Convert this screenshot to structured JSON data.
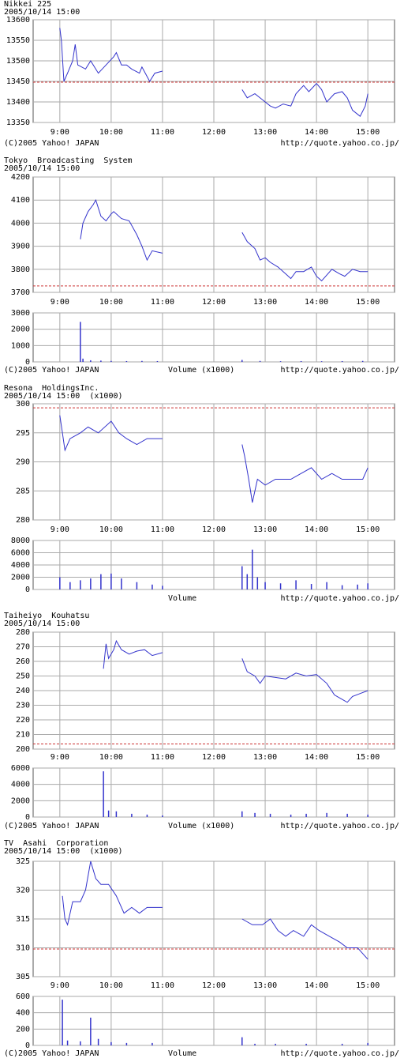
{
  "chart_data": [
    {
      "type": "line",
      "title": "Nikkei 225",
      "subtitle": "2005/10/14 15:00",
      "color": "#3333cc",
      "reference_line": 13448,
      "reference_color": "#cc3333",
      "grid": true,
      "xlim": [
        8.48,
        15.52
      ],
      "xticks": [
        {
          "value": 9,
          "label": "9:00"
        },
        {
          "value": 10,
          "label": "10:00"
        },
        {
          "value": 11,
          "label": "11:00"
        },
        {
          "value": 12,
          "label": "12:00"
        },
        {
          "value": 13,
          "label": "13:00"
        },
        {
          "value": 14,
          "label": "14:00"
        },
        {
          "value": 15,
          "label": "15:00"
        }
      ],
      "ylim": [
        13350,
        13600
      ],
      "yticks": [
        13350,
        13400,
        13450,
        13500,
        13550,
        13600
      ],
      "x": [
        9.0,
        9.03,
        9.08,
        9.15,
        9.25,
        9.3,
        9.35,
        9.5,
        9.6,
        9.75,
        9.9,
        10.05,
        10.1,
        10.2,
        10.3,
        10.4,
        10.55,
        10.6,
        10.75,
        10.85,
        11.0,
        11.5,
        12.55,
        12.65,
        12.8,
        12.95,
        13.1,
        13.2,
        13.35,
        13.5,
        13.6,
        13.75,
        13.85,
        14.0,
        14.1,
        14.2,
        14.35,
        14.5,
        14.6,
        14.7,
        14.85,
        14.95,
        15.0
      ],
      "values": [
        13580,
        13550,
        13450,
        13470,
        13500,
        13540,
        13490,
        13480,
        13500,
        13470,
        13490,
        13510,
        13520,
        13490,
        13490,
        13480,
        13470,
        13485,
        13450,
        13470,
        13475,
        null,
        13430,
        13410,
        13420,
        13405,
        13390,
        13385,
        13395,
        13390,
        13420,
        13440,
        13425,
        13445,
        13430,
        13400,
        13420,
        13425,
        13410,
        13380,
        13365,
        13390,
        13420
      ],
      "copyright": "(C)2005 Yahoo! JAPAN",
      "source": "http://quote.yahoo.co.jp/"
    },
    {
      "type": "line",
      "title": "Tokyo  Broadcasting  System",
      "subtitle": "2005/10/14 15:00",
      "color": "#3333cc",
      "reference_line": 3728,
      "reference_color": "#cc3333",
      "grid": true,
      "xlim": [
        8.48,
        15.52
      ],
      "xticks": [
        {
          "value": 9,
          "label": "9:00"
        },
        {
          "value": 10,
          "label": "10:00"
        },
        {
          "value": 11,
          "label": "11:00"
        },
        {
          "value": 12,
          "label": "12:00"
        },
        {
          "value": 13,
          "label": "13:00"
        },
        {
          "value": 14,
          "label": "14:00"
        },
        {
          "value": 15,
          "label": "15:00"
        }
      ],
      "ylim": [
        3700,
        4200
      ],
      "yticks": [
        3700,
        3800,
        3900,
        4000,
        4100,
        4200
      ],
      "x": [
        9.4,
        9.45,
        9.55,
        9.65,
        9.7,
        9.8,
        9.9,
        10.0,
        10.05,
        10.2,
        10.35,
        10.5,
        10.6,
        10.7,
        10.8,
        11.0,
        11.5,
        12.55,
        12.65,
        12.8,
        12.9,
        13.0,
        13.1,
        13.25,
        13.4,
        13.5,
        13.6,
        13.75,
        13.9,
        14.0,
        14.1,
        14.3,
        14.45,
        14.55,
        14.7,
        14.85,
        15.0
      ],
      "values": [
        3930,
        4000,
        4050,
        4080,
        4100,
        4030,
        4010,
        4040,
        4050,
        4020,
        4010,
        3950,
        3900,
        3840,
        3880,
        3870,
        null,
        3960,
        3920,
        3890,
        3840,
        3850,
        3830,
        3810,
        3780,
        3760,
        3790,
        3790,
        3810,
        3770,
        3750,
        3800,
        3780,
        3770,
        3800,
        3790,
        3790
      ],
      "volume": {
        "ylim": [
          0,
          3000
        ],
        "yticks": [
          0,
          1000,
          2000,
          3000
        ],
        "x": [
          9.4,
          9.45,
          9.6,
          9.8,
          10.0,
          10.3,
          10.6,
          10.9,
          12.55,
          12.9,
          13.3,
          13.7,
          14.1,
          14.5,
          14.9
        ],
        "values": [
          2450,
          200,
          100,
          80,
          60,
          50,
          60,
          50,
          120,
          60,
          40,
          50,
          40,
          50,
          60
        ]
      },
      "copyright": "(C)2005 Yahoo! JAPAN",
      "volume_label": "Volume (x1000)",
      "source": "http://quote.yahoo.co.jp/"
    },
    {
      "type": "line",
      "title": "Resona  HoldingsInc.",
      "subtitle": "2005/10/14 15:00  (x1000)",
      "color": "#3333cc",
      "reference_line": 299.3,
      "reference_color": "#cc3333",
      "grid": true,
      "xlim": [
        8.48,
        15.52
      ],
      "xticks": [
        {
          "value": 9,
          "label": "9:00"
        },
        {
          "value": 10,
          "label": "10:00"
        },
        {
          "value": 11,
          "label": "11:00"
        },
        {
          "value": 12,
          "label": "12:00"
        },
        {
          "value": 13,
          "label": "13:00"
        },
        {
          "value": 14,
          "label": "14:00"
        },
        {
          "value": 15,
          "label": "15:00"
        }
      ],
      "ylim": [
        280,
        300
      ],
      "yticks": [
        280,
        285,
        290,
        295,
        300
      ],
      "x": [
        9.0,
        9.05,
        9.1,
        9.2,
        9.4,
        9.55,
        9.75,
        10.0,
        10.15,
        10.3,
        10.5,
        10.7,
        11.0,
        11.5,
        12.55,
        12.6,
        12.68,
        12.75,
        12.85,
        13.0,
        13.2,
        13.5,
        13.7,
        13.9,
        14.1,
        14.3,
        14.5,
        14.7,
        14.9,
        15.0
      ],
      "values": [
        298,
        295,
        292,
        294,
        295,
        296,
        295,
        297,
        295,
        294,
        293,
        294,
        294,
        null,
        293,
        291,
        287,
        283,
        287,
        286,
        287,
        287,
        288,
        289,
        287,
        288,
        287,
        287,
        287,
        289
      ],
      "volume": {
        "ylim": [
          0,
          8000
        ],
        "yticks": [
          0,
          2000,
          4000,
          6000,
          8000
        ],
        "x": [
          9.0,
          9.2,
          9.4,
          9.6,
          9.8,
          10.0,
          10.2,
          10.5,
          10.8,
          11.0,
          12.55,
          12.65,
          12.75,
          12.85,
          13.0,
          13.3,
          13.6,
          13.9,
          14.2,
          14.5,
          14.8,
          15.0
        ],
        "values": [
          2000,
          1200,
          1500,
          1800,
          2500,
          2600,
          1800,
          1200,
          800,
          600,
          3800,
          2500,
          6500,
          2000,
          1200,
          1000,
          1500,
          900,
          1200,
          700,
          800,
          1000
        ]
      },
      "volume_label": "Volume",
      "source": "http://quote.yahoo.co.jp/"
    },
    {
      "type": "line",
      "title": "Taiheiyo  Kouhatsu",
      "subtitle": "2005/10/14 15:00",
      "color": "#3333cc",
      "reference_line": 203.5,
      "reference_color": "#cc3333",
      "grid": true,
      "xlim": [
        8.48,
        15.52
      ],
      "xticks": [
        {
          "value": 9,
          "label": "9:00"
        },
        {
          "value": 10,
          "label": "10:00"
        },
        {
          "value": 11,
          "label": "11:00"
        },
        {
          "value": 12,
          "label": "12:00"
        },
        {
          "value": 13,
          "label": "13:00"
        },
        {
          "value": 14,
          "label": "14:00"
        },
        {
          "value": 15,
          "label": "15:00"
        }
      ],
      "ylim": [
        200,
        280
      ],
      "yticks": [
        200,
        210,
        220,
        230,
        240,
        250,
        260,
        270,
        280
      ],
      "x": [
        9.85,
        9.9,
        9.95,
        10.05,
        10.1,
        10.2,
        10.35,
        10.5,
        10.65,
        10.8,
        11.0,
        11.5,
        12.55,
        12.65,
        12.8,
        12.9,
        13.0,
        13.2,
        13.4,
        13.6,
        13.8,
        14.0,
        14.2,
        14.35,
        14.5,
        14.6,
        14.7,
        14.85,
        15.0
      ],
      "values": [
        255,
        272,
        262,
        268,
        274,
        268,
        265,
        267,
        268,
        264,
        266,
        null,
        262,
        253,
        250,
        245,
        250,
        249,
        248,
        252,
        250,
        251,
        245,
        237,
        234,
        232,
        236,
        238,
        240
      ],
      "volume": {
        "ylim": [
          0,
          6000
        ],
        "yticks": [
          0,
          2000,
          4000,
          6000
        ],
        "x": [
          9.85,
          9.95,
          10.1,
          10.4,
          10.7,
          11.0,
          12.55,
          12.8,
          13.1,
          13.5,
          13.8,
          14.2,
          14.6,
          15.0
        ],
        "values": [
          5600,
          800,
          700,
          400,
          300,
          200,
          700,
          500,
          400,
          300,
          400,
          500,
          400,
          300
        ]
      },
      "copyright": "(C)2005 Yahoo! JAPAN",
      "volume_label": "Volume (x1000)",
      "source": "http://quote.yahoo.co.jp/"
    },
    {
      "type": "line",
      "title": "TV  Asahi  Corporation",
      "subtitle": "2005/10/14 15:00  (x1000)",
      "color": "#3333cc",
      "reference_line": 309.8,
      "reference_color": "#cc3333",
      "grid": true,
      "xlim": [
        8.48,
        15.52
      ],
      "xticks": [
        {
          "value": 9,
          "label": "9:00"
        },
        {
          "value": 10,
          "label": "10:00"
        },
        {
          "value": 11,
          "label": "11:00"
        },
        {
          "value": 12,
          "label": "12:00"
        },
        {
          "value": 13,
          "label": "13:00"
        },
        {
          "value": 14,
          "label": "14:00"
        },
        {
          "value": 15,
          "label": "15:00"
        }
      ],
      "ylim": [
        305,
        325
      ],
      "yticks": [
        305,
        310,
        315,
        320,
        325
      ],
      "x": [
        9.05,
        9.1,
        9.15,
        9.25,
        9.4,
        9.5,
        9.6,
        9.7,
        9.8,
        9.95,
        10.1,
        10.25,
        10.4,
        10.55,
        10.7,
        11.0,
        11.5,
        12.55,
        12.75,
        12.95,
        13.1,
        13.25,
        13.4,
        13.55,
        13.75,
        13.9,
        14.05,
        14.25,
        14.45,
        14.6,
        14.8,
        14.9,
        15.0
      ],
      "values": [
        319,
        315,
        314,
        318,
        318,
        320,
        325,
        322,
        321,
        321,
        319,
        316,
        317,
        316,
        317,
        317,
        null,
        315,
        314,
        314,
        315,
        313,
        312,
        313,
        312,
        314,
        313,
        312,
        311,
        310,
        310,
        309,
        308
      ],
      "volume": {
        "ylim": [
          0,
          600
        ],
        "yticks": [
          0,
          200,
          400,
          600
        ],
        "x": [
          9.05,
          9.15,
          9.4,
          9.6,
          9.75,
          10.0,
          10.3,
          10.8,
          12.55,
          12.8,
          13.2,
          13.8,
          14.5,
          15.0
        ],
        "values": [
          560,
          60,
          50,
          340,
          80,
          40,
          30,
          30,
          100,
          20,
          20,
          20,
          20,
          30
        ]
      },
      "copyright": "(C)2005 Yahoo! JAPAN",
      "volume_label": "Volume",
      "source": "http://quote.yahoo.co.jp/"
    }
  ]
}
